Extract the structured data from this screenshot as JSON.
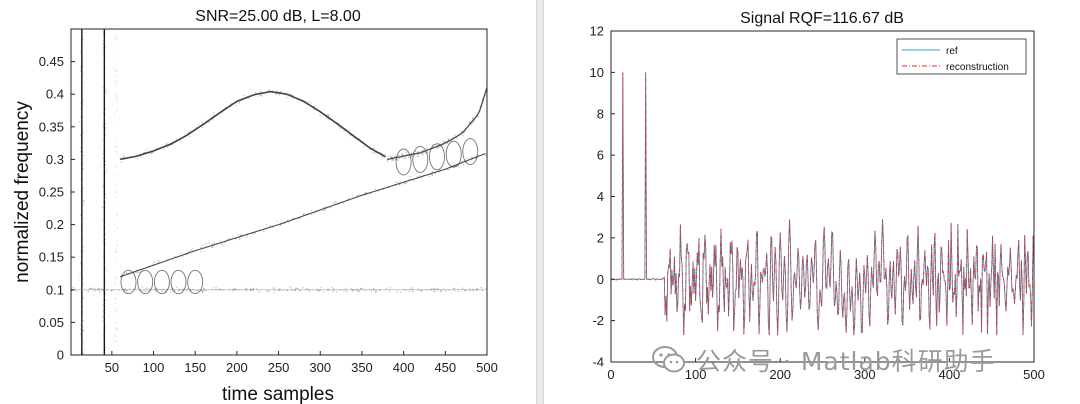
{
  "chart_data": [
    {
      "type": "scatter",
      "title": "SNR=25.00 dB, L=8.00",
      "xlabel": "time samples",
      "ylabel": "normalized frequency",
      "xlim": [
        1,
        500
      ],
      "ylim": [
        0,
        0.5
      ],
      "xticks": [
        50,
        100,
        150,
        200,
        250,
        300,
        350,
        400,
        450,
        500
      ],
      "yticks": [
        0,
        0.05,
        0.1,
        0.15,
        0.2,
        0.25,
        0.3,
        0.35,
        0.4,
        0.45
      ],
      "grid": false,
      "colormap": "gray-reversed",
      "series": [
        {
          "kind": "vertical-line",
          "x": 14,
          "from": 0,
          "to": 0.5
        },
        {
          "kind": "vertical-line",
          "x": 41,
          "from": 0,
          "to": 0.5
        },
        {
          "kind": "sinusoidal-fm",
          "x": [
            60,
            80,
            100,
            120,
            140,
            160,
            180,
            200,
            220,
            240,
            260,
            280,
            300,
            320,
            340,
            360,
            380
          ],
          "y": [
            0.3,
            0.305,
            0.313,
            0.323,
            0.337,
            0.354,
            0.372,
            0.389,
            0.399,
            0.404,
            0.4,
            0.389,
            0.373,
            0.355,
            0.336,
            0.317,
            0.303
          ]
        },
        {
          "kind": "linear-chirp",
          "x": [
            60,
            150,
            250,
            350,
            450,
            500
          ],
          "y": [
            0.12,
            0.16,
            0.2,
            0.245,
            0.285,
            0.31
          ]
        },
        {
          "kind": "constant-tone",
          "x": [
            0,
            500
          ],
          "y": [
            0.1,
            0.1
          ]
        },
        {
          "kind": "rising-tail",
          "x": [
            380,
            420,
            450,
            470,
            490,
            500
          ],
          "y": [
            0.3,
            0.31,
            0.325,
            0.34,
            0.37,
            0.41
          ]
        }
      ]
    },
    {
      "type": "line",
      "title": "Signal RQF=116.67 dB",
      "xlim": [
        0,
        500
      ],
      "ylim": [
        -4,
        12
      ],
      "xticks": [
        0,
        100,
        200,
        300,
        400,
        500
      ],
      "yticks": [
        -4,
        -2,
        0,
        2,
        4,
        6,
        8,
        10,
        12
      ],
      "grid": false,
      "legend_position": "top-right",
      "legend": [
        "ref",
        "reconstruction"
      ],
      "series": [
        {
          "name": "ref",
          "color": "#2f9fd3",
          "style": "solid",
          "description_points": {
            "baseline_until": 63,
            "spikes": [
              [
                14,
                10
              ],
              [
                41,
                10
              ]
            ],
            "oscillation_range": [
              -2.7,
              2.9
            ]
          }
        },
        {
          "name": "reconstruction",
          "color": "#e0302a",
          "style": "dash-dot"
        }
      ]
    }
  ],
  "watermark": {
    "text": "公众号 · Matlab科研助手",
    "icon": "wechat-icon"
  }
}
